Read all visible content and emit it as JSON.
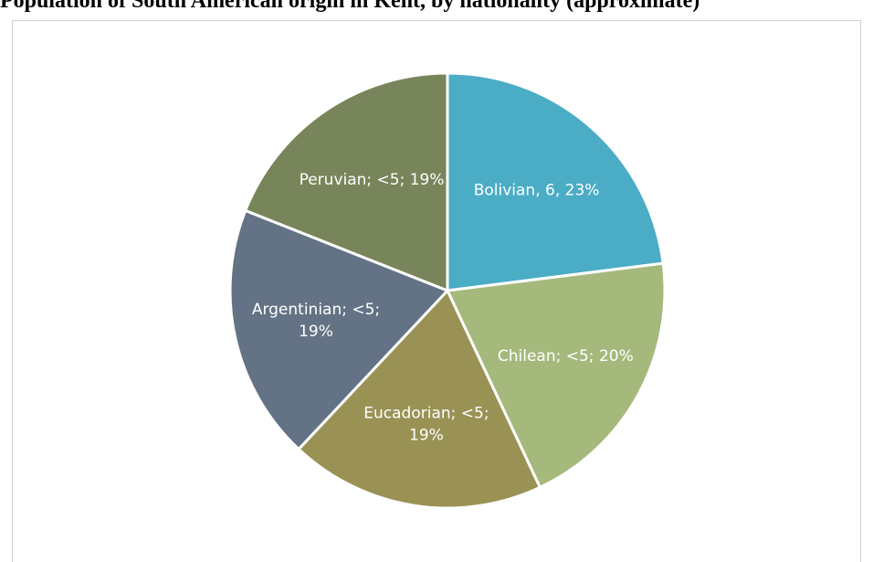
{
  "title": "Population of South American origin in Kent, by nationality (approximate)",
  "colors": {
    "Bolivian": "#4bacc6",
    "Chilean": "#a5b97c",
    "Eucadorian": "#9a9255",
    "Argentinian": "#637385",
    "Peruvian": "#78855a"
  },
  "chart_data": {
    "type": "pie",
    "title": "Population of South American origin in Kent, by nationality (approximate)",
    "slices": [
      {
        "name": "Bolivian",
        "value_label": "6",
        "percent": 23,
        "label_lines": [
          "Bolivian, 6, 23%"
        ]
      },
      {
        "name": "Chilean",
        "value_label": "<5",
        "percent": 20,
        "label_lines": [
          "Chilean; <5; 20%"
        ]
      },
      {
        "name": "Eucadorian",
        "value_label": "<5",
        "percent": 19,
        "label_lines": [
          "Eucadorian; <5;",
          "19%"
        ]
      },
      {
        "name": "Argentinian",
        "value_label": "<5",
        "percent": 19,
        "label_lines": [
          "Argentinian; <5;",
          "19%"
        ]
      },
      {
        "name": "Peruvian",
        "value_label": "<5",
        "percent": 19,
        "label_lines": [
          "Peruvian; <5; 19%"
        ]
      }
    ],
    "legend": "none"
  }
}
